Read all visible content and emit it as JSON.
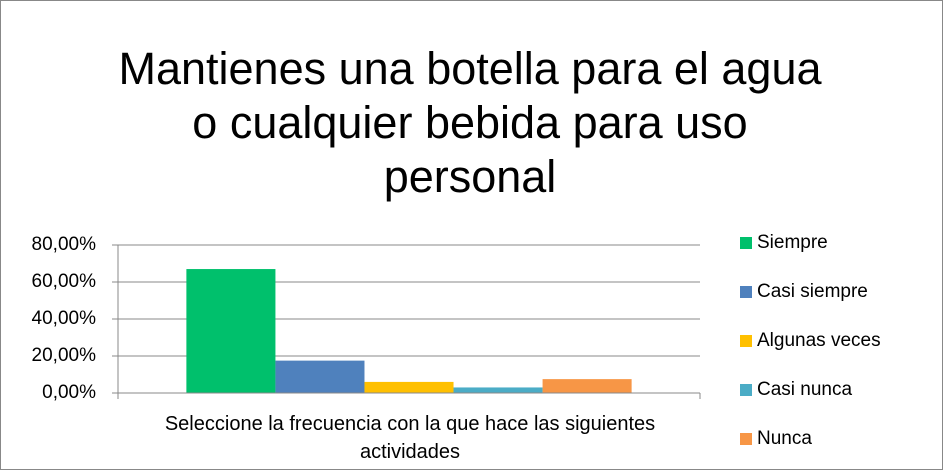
{
  "chart_data": {
    "type": "bar",
    "title": "Mantienes una botella para el agua o cualquier bebida para uso personal",
    "categories": [
      "Seleccione la frecuencia con la que hace las siguientes actividades"
    ],
    "series": [
      {
        "name": "Siempre",
        "color": "#00c06c",
        "values": [
          67
        ]
      },
      {
        "name": "Casi siempre",
        "color": "#4f81bd",
        "values": [
          17.5
        ]
      },
      {
        "name": "Algunas veces",
        "color": "#ffc000",
        "values": [
          6
        ]
      },
      {
        "name": "Casi nunca",
        "color": "#4bacc6",
        "values": [
          3
        ]
      },
      {
        "name": "Nunca",
        "color": "#f79646",
        "values": [
          7.5
        ]
      }
    ],
    "ylim": [
      0,
      80
    ],
    "yticks": [
      {
        "value": 0,
        "label": "0,00%"
      },
      {
        "value": 20,
        "label": "20,00%"
      },
      {
        "value": 40,
        "label": "40,00%"
      },
      {
        "value": 60,
        "label": "60,00%"
      },
      {
        "value": 80,
        "label": "80,00%"
      }
    ],
    "grid": true,
    "legend": "right"
  }
}
